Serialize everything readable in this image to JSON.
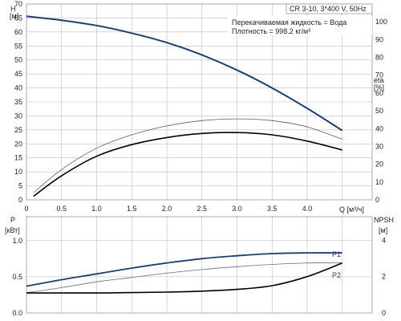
{
  "top_chart": {
    "title": "CR 3-10, 3*400 V, 50Hz",
    "liquid_label": "Перекачиваемая жидкость = Вода",
    "density_label": "Плотность = 998.2 кг/м³",
    "y_left_name": "H",
    "y_left_unit": "[м]",
    "y_right_name": "eta",
    "y_right_unit": "[%]",
    "x_label": "Q [м³/ч]",
    "y_left_ticks": [
      "0",
      "5",
      "10",
      "15",
      "20",
      "25",
      "30",
      "35",
      "40",
      "45",
      "50",
      "55",
      "60",
      "65",
      "70"
    ],
    "y_right_ticks": [
      "0",
      "10",
      "20",
      "30",
      "40",
      "50",
      "60",
      "70",
      "80",
      "90",
      "100"
    ],
    "x_ticks": [
      "0",
      "0.5",
      "1.0",
      "1.5",
      "2.0",
      "2.5",
      "3.0",
      "3.5",
      "4.0"
    ]
  },
  "bottom_chart": {
    "y_left_name": "P",
    "y_left_unit": "[кВт]",
    "y_right_name": "NPSH",
    "y_right_unit": "[м]",
    "y_left_ticks": [
      "0.0",
      "0.5",
      "1.0"
    ],
    "y_right_ticks": [
      "0",
      "2",
      "4"
    ],
    "p1_label": "P1",
    "p2_label": "P2"
  },
  "chart_data": [
    {
      "type": "line",
      "title": "CR 3-10, 3*400 V, 50Hz",
      "xlabel": "Q [м³/ч]",
      "ylabel": "H [м]",
      "y2label": "eta [%]",
      "xlim": [
        0,
        4.7
      ],
      "ylim": [
        0,
        70
      ],
      "y2lim": [
        0,
        110
      ],
      "grid": true,
      "series": [
        {
          "axis": "left",
          "color": "#1f3f6e",
          "x": [
            0,
            0.5,
            1.0,
            1.5,
            2.0,
            2.5,
            3.0,
            3.5,
            4.0,
            4.5
          ],
          "values": [
            65.6,
            64.2,
            62.3,
            59.6,
            56.2,
            51.8,
            46.4,
            40.0,
            32.7,
            24.8
          ]
        },
        {
          "axis": "right",
          "color": "#5a5a5a",
          "x": [
            0.1,
            0.5,
            1.0,
            1.5,
            2.0,
            2.5,
            3.0,
            3.5,
            4.0,
            4.5
          ],
          "values": [
            4,
            17,
            29,
            36.5,
            41.5,
            44.5,
            45.5,
            44.5,
            41,
            34
          ]
        },
        {
          "axis": "right",
          "color": "#000000",
          "x": [
            0.1,
            0.5,
            1.0,
            1.5,
            2.0,
            2.5,
            3.0,
            3.5,
            4.0,
            4.5
          ],
          "values": [
            2,
            13.5,
            24.5,
            31,
            35,
            37.3,
            37.8,
            36.5,
            33,
            28
          ]
        }
      ]
    },
    {
      "type": "line",
      "xlabel": "Q [м³/ч]",
      "ylabel": "P [кВт]",
      "y2label": "NPSH [м]",
      "xlim": [
        0,
        4.7
      ],
      "ylim": [
        0,
        1.33
      ],
      "y2lim": [
        0,
        5.3
      ],
      "grid": true,
      "series": [
        {
          "name": "P1",
          "axis": "left",
          "color": "#1f3f6e",
          "x": [
            0,
            0.5,
            1.0,
            1.5,
            2.0,
            2.5,
            3.0,
            3.5,
            4.0,
            4.5
          ],
          "values": [
            0.37,
            0.46,
            0.54,
            0.62,
            0.69,
            0.75,
            0.79,
            0.82,
            0.83,
            0.83
          ]
        },
        {
          "name": "P2",
          "axis": "left",
          "color": "#5a6e8a",
          "x": [
            0,
            0.5,
            1.0,
            1.5,
            2.0,
            2.5,
            3.0,
            3.5,
            4.0,
            4.5
          ],
          "values": [
            0.28,
            0.35,
            0.43,
            0.49,
            0.55,
            0.6,
            0.64,
            0.67,
            0.69,
            0.69
          ]
        },
        {
          "axis": "right",
          "color": "#000000",
          "x": [
            0,
            0.5,
            1.0,
            1.5,
            2.0,
            2.5,
            3.0,
            3.5,
            4.0,
            4.5
          ],
          "values": [
            1.1,
            1.1,
            1.1,
            1.12,
            1.15,
            1.2,
            1.3,
            1.5,
            2.0,
            2.75
          ]
        }
      ]
    }
  ]
}
